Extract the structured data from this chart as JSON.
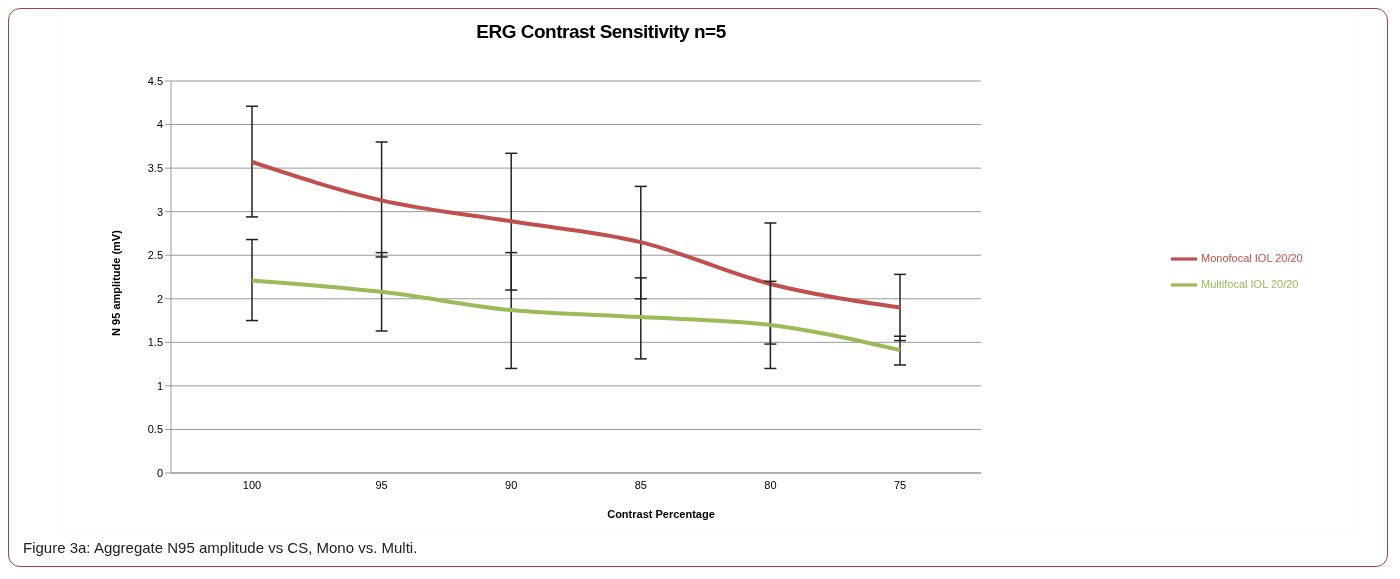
{
  "chart_data": {
    "type": "line",
    "title": "ERG Contrast Sensitivity n=5",
    "xlabel": "Contrast Percentage",
    "ylabel": "N 95 amplitude (mV)",
    "categories": [
      "100",
      "95",
      "90",
      "85",
      "80",
      "75"
    ],
    "series": [
      {
        "name": "Monofocal IOL 20/20",
        "color": "#c0504d",
        "values": [
          3.57,
          3.13,
          2.89,
          2.65,
          2.17,
          1.9
        ],
        "errors": [
          [
            2.94,
            4.21
          ],
          [
            2.48,
            3.8
          ],
          [
            2.1,
            3.67
          ],
          [
            2.0,
            3.29
          ],
          [
            1.48,
            2.87
          ],
          [
            1.52,
            2.28
          ]
        ]
      },
      {
        "name": "Multifocal IOL 20/20",
        "color": "#9bbb59",
        "values": [
          2.21,
          2.08,
          1.87,
          1.79,
          1.7,
          1.41
        ],
        "errors": [
          [
            1.75,
            2.68
          ],
          [
            1.63,
            2.53
          ],
          [
            1.2,
            2.53
          ],
          [
            1.31,
            2.24
          ],
          [
            1.2,
            2.2
          ],
          [
            1.24,
            1.57
          ]
        ]
      }
    ],
    "ylim": [
      0,
      4.5
    ],
    "yticks": [
      0,
      0.5,
      1,
      1.5,
      2,
      2.5,
      3,
      3.5,
      4,
      4.5
    ],
    "grid": "y",
    "legend": "right",
    "marker": "none",
    "line_style": "solid",
    "annotations": [
      "Figure 3a: Aggregate N95 amplitude vs CS, Mono vs. Multi."
    ]
  }
}
